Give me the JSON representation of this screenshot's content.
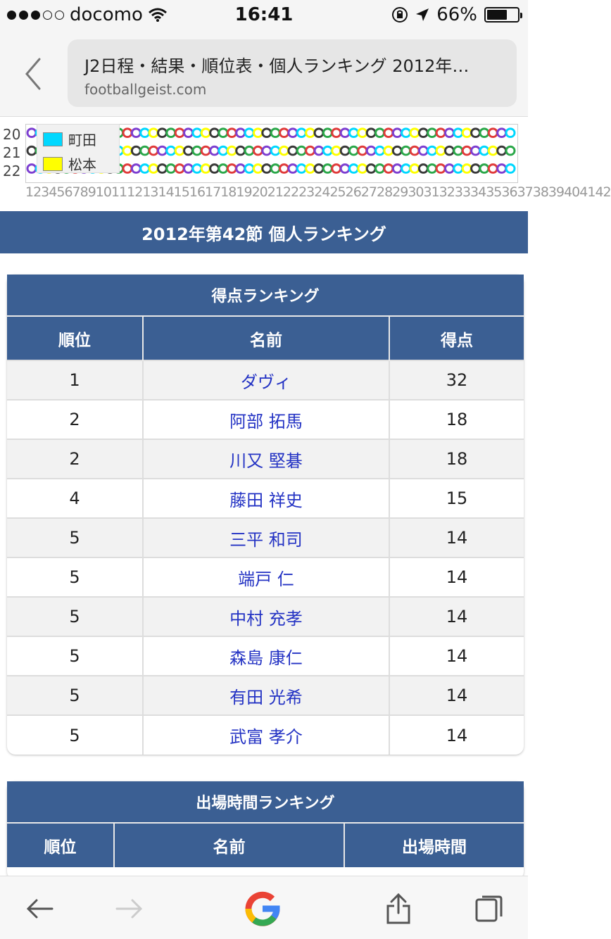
{
  "status_bar": {
    "carrier": "docomo",
    "time": "16:41",
    "battery": "66%",
    "battery_level": 0.66
  },
  "browser": {
    "page_title": "J2日程・結果・順位表・個人ランキング 2012年…",
    "domain": "footballgeist.com"
  },
  "chart_fragment": {
    "row_numbers": [
      "20",
      "21",
      "22"
    ],
    "legend": [
      {
        "label": "町田",
        "color": "#00d8ff"
      },
      {
        "label": "松本",
        "color": "#ffff00"
      }
    ],
    "x_axis_labels": "123456789101112131415161718192021222324252627282930313233343536373839404142"
  },
  "section": {
    "title": "2012年第42節 個人ランキング"
  },
  "scoring": {
    "title": "得点ランキング",
    "headers": {
      "rank": "順位",
      "name": "名前",
      "points": "得点"
    },
    "rows": [
      {
        "rank": "1",
        "name": "ダヴィ",
        "points": "32"
      },
      {
        "rank": "2",
        "name": "阿部 拓馬",
        "points": "18"
      },
      {
        "rank": "2",
        "name": "川又 堅碁",
        "points": "18"
      },
      {
        "rank": "4",
        "name": "藤田 祥史",
        "points": "15"
      },
      {
        "rank": "5",
        "name": "三平 和司",
        "points": "14"
      },
      {
        "rank": "5",
        "name": "端戸 仁",
        "points": "14"
      },
      {
        "rank": "5",
        "name": "中村 充孝",
        "points": "14"
      },
      {
        "rank": "5",
        "name": "森島 康仁",
        "points": "14"
      },
      {
        "rank": "5",
        "name": "有田 光希",
        "points": "14"
      },
      {
        "rank": "5",
        "name": "武富 孝介",
        "points": "14"
      }
    ]
  },
  "playtime": {
    "title": "出場時間ランキング",
    "headers": {
      "rank": "順位",
      "name": "名前",
      "minutes": "出場時間"
    }
  },
  "colors": {
    "header_blue": "#3b5f93",
    "link_blue": "#2433c4"
  }
}
